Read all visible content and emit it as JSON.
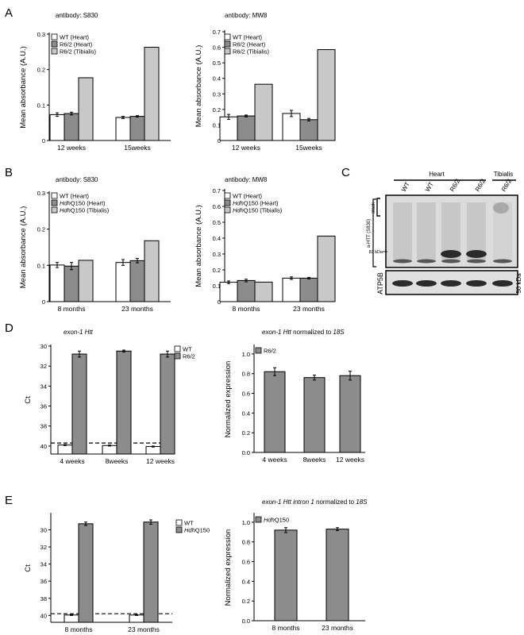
{
  "panel_letters": {
    "A": "A",
    "B": "B",
    "C": "C",
    "D": "D",
    "E": "E"
  },
  "colors": {
    "wt": "#ffffff",
    "heart": "#8c8c8c",
    "tibialis": "#c8c8c8",
    "edge": "#000000"
  },
  "chart_data": [
    {
      "id": "A1",
      "type": "bar",
      "title": "antibody: S830",
      "ylabel": "Mean absorbance (A.U.)",
      "categories": [
        "12 weeks",
        "15weeks"
      ],
      "ylim": [
        0,
        0.3
      ],
      "yticks": [
        0,
        0.1,
        0.2,
        0.3
      ],
      "legend": "top-left",
      "series": [
        {
          "name": "WT (Heart)",
          "values": [
            0.073,
            0.065
          ],
          "errors": [
            0.005,
            0.003
          ],
          "color": "#ffffff"
        },
        {
          "name": "R6/2 (Heart)",
          "values": [
            0.076,
            0.068
          ],
          "errors": [
            0.004,
            0.002
          ],
          "color": "#8c8c8c"
        },
        {
          "name": "R6/2 (Tibialis)",
          "values": [
            0.177,
            0.263
          ],
          "errors": [
            null,
            null
          ],
          "color": "#c8c8c8"
        }
      ]
    },
    {
      "id": "A2",
      "type": "bar",
      "title": "antibody: MW8",
      "ylabel": "Mean absorbance (A.U.)",
      "categories": [
        "12 weeks",
        "15weeks"
      ],
      "ylim": [
        0,
        0.7
      ],
      "yticks": [
        0,
        0.1,
        0.2,
        0.3,
        0.4,
        0.5,
        0.6,
        0.7
      ],
      "legend": "top-left",
      "series": [
        {
          "name": "WT (Heart)",
          "values": [
            0.152,
            0.174
          ],
          "errors": [
            0.016,
            0.02
          ],
          "color": "#ffffff"
        },
        {
          "name": "R6/2 (Heart)",
          "values": [
            0.158,
            0.134
          ],
          "errors": [
            0.006,
            0.008
          ],
          "color": "#8c8c8c"
        },
        {
          "name": "R6/2 (Tibialis)",
          "values": [
            0.362,
            0.585
          ],
          "errors": [
            null,
            null
          ],
          "color": "#c8c8c8"
        }
      ]
    },
    {
      "id": "B1",
      "type": "bar",
      "title": "antibody: S830",
      "ylabel": "Mean absorbance (A.U.)",
      "categories": [
        "8 months",
        "23 months"
      ],
      "ylim": [
        0,
        0.3
      ],
      "yticks": [
        0,
        0.1,
        0.2,
        0.3
      ],
      "legend": "top-left",
      "series": [
        {
          "name": "WT (Heart)",
          "values": [
            0.101,
            0.108
          ],
          "errors": [
            0.007,
            0.008
          ],
          "color": "#ffffff"
        },
        {
          "name": "HdhQ150 (Heart)",
          "name_italic": "Hdh",
          "name_rest": "Q150 (Heart)",
          "values": [
            0.098,
            0.113
          ],
          "errors": [
            0.01,
            0.006
          ],
          "color": "#8c8c8c"
        },
        {
          "name": "HdhQ150 (Tibialis)",
          "name_italic": "Hdh",
          "name_rest": "Q150 (Tibialis)",
          "values": [
            0.114,
            0.168
          ],
          "errors": [
            null,
            null
          ],
          "color": "#c8c8c8"
        }
      ]
    },
    {
      "id": "B2",
      "type": "bar",
      "title": "antibody: MW8",
      "ylabel": "Mean absorbance (A.U.)",
      "categories": [
        "8 months",
        "23 months"
      ],
      "ylim": [
        0,
        0.7
      ],
      "yticks": [
        0,
        0.1,
        0.2,
        0.3,
        0.4,
        0.5,
        0.6,
        0.7
      ],
      "legend": "top-left",
      "series": [
        {
          "name": "WT (Heart)",
          "values": [
            0.122,
            0.148
          ],
          "errors": [
            0.008,
            0.008
          ],
          "color": "#ffffff"
        },
        {
          "name": "HdhQ150 (Heart)",
          "name_italic": "Hdh",
          "name_rest": "Q150 (Heart)",
          "values": [
            0.133,
            0.148
          ],
          "errors": [
            0.008,
            0.005
          ],
          "color": "#8c8c8c"
        },
        {
          "name": "HdhQ150 (Tibialis)",
          "name_italic": "Hdh",
          "name_rest": "Q150 (Tibialis)",
          "values": [
            0.123,
            0.413
          ],
          "errors": [
            null,
            null
          ],
          "color": "#c8c8c8"
        }
      ]
    },
    {
      "id": "D1",
      "type": "bar",
      "title_parts": [
        {
          "t": "exon-1 Htt",
          "i": true
        }
      ],
      "ylabel": "Ct",
      "categories": [
        "4 weeks",
        "8weeks",
        "12 weeks"
      ],
      "ylim": [
        30,
        40.8
      ],
      "inverted": true,
      "yticks": [
        30,
        32,
        34,
        36,
        38,
        40
      ],
      "dashed_y": 39.7,
      "legend": "top-right",
      "series": [
        {
          "name": "WT",
          "values": [
            39.9,
            39.95,
            40.05
          ],
          "errors": [
            0.05,
            0.05,
            0.05
          ],
          "color": "#ffffff"
        },
        {
          "name": "R6/2",
          "values": [
            30.8,
            30.5,
            30.8
          ],
          "errors": [
            0.3,
            0.1,
            0.3
          ],
          "color": "#8c8c8c"
        }
      ]
    },
    {
      "id": "D2",
      "type": "bar",
      "title_parts": [
        {
          "t": "exon-1 Htt",
          "i": true
        },
        {
          "t": " normalized to ",
          "i": false
        },
        {
          "t": "18S",
          "i": true
        }
      ],
      "ylabel": "Normalized expression",
      "categories": [
        "4 weeks",
        "8weeks",
        "12 weeks"
      ],
      "ylim": [
        0,
        1.08
      ],
      "yticks": [
        0,
        0.2,
        0.4,
        0.6,
        0.8,
        1.0
      ],
      "legend": "top-left",
      "series": [
        {
          "name": "R6/2",
          "values": [
            0.82,
            0.76,
            0.78
          ],
          "errors": [
            0.04,
            0.025,
            0.045
          ],
          "color": "#8c8c8c"
        }
      ]
    },
    {
      "id": "E1",
      "type": "bar",
      "title": "",
      "ylabel": "Ct",
      "categories": [
        "8 months",
        "23 months"
      ],
      "ylim": [
        28.2,
        40.8
      ],
      "inverted": true,
      "yticks": [
        30,
        32,
        34,
        36,
        38,
        40
      ],
      "dashed_y": 39.8,
      "legend": "top-right",
      "series": [
        {
          "name": "WT",
          "values": [
            39.95,
            39.95
          ],
          "errors": [
            0.05,
            0.05
          ],
          "color": "#ffffff"
        },
        {
          "name": "HdhQ150",
          "name_italic": "Hdh",
          "name_rest": "Q150",
          "values": [
            29.3,
            29.1
          ],
          "errors": [
            0.2,
            0.25
          ],
          "color": "#8c8c8c"
        }
      ]
    },
    {
      "id": "E2",
      "type": "bar",
      "title_parts": [
        {
          "t": "exon-1 Htt intron 1",
          "i": true
        },
        {
          "t": " normalized to ",
          "i": false
        },
        {
          "t": "18S",
          "i": true
        }
      ],
      "ylabel": "Normalized expression",
      "categories": [
        "8 months",
        "23 months"
      ],
      "ylim": [
        0,
        1.08
      ],
      "yticks": [
        0,
        0.2,
        0.4,
        0.6,
        0.8,
        1.0
      ],
      "legend": "top-left",
      "series": [
        {
          "name": "HdhQ150",
          "name_italic": "Hdh",
          "name_rest": "Q150",
          "values": [
            0.92,
            0.93
          ],
          "errors": [
            0.025,
            0.015
          ],
          "color": "#8c8c8c"
        }
      ]
    }
  ],
  "blot": {
    "heart_label": "Heart",
    "tibialis_label": "Tibialis",
    "lanes": [
      "WT",
      "WT",
      "R6/2",
      "R6/2",
      "R6/2"
    ],
    "stack_label": "stack",
    "antibody_label": "a-HTT (S830)",
    "marker_label": "83 kDa",
    "loading_label": "ATP5B",
    "loading_size": "50 kDa"
  }
}
